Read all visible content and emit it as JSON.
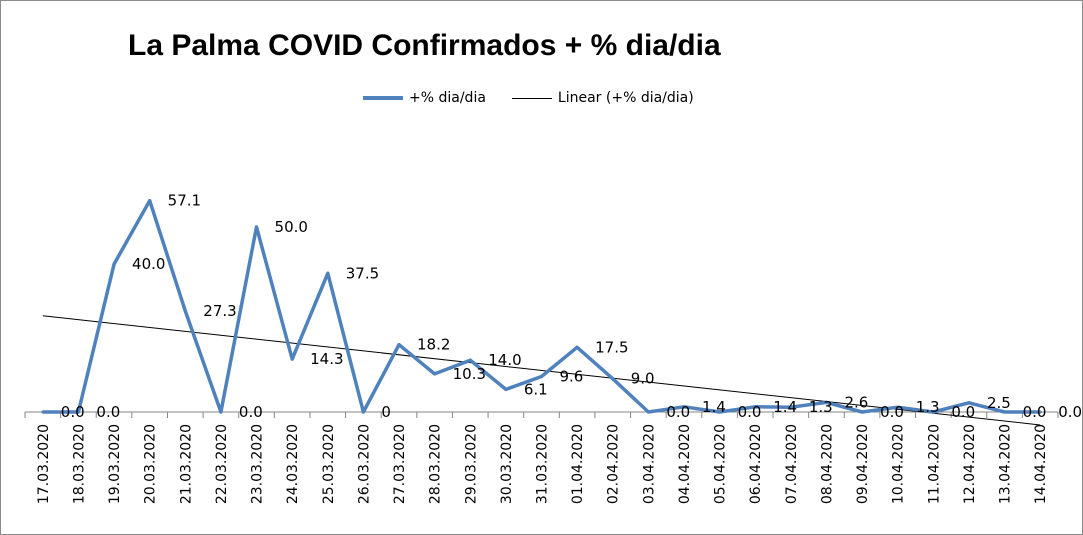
{
  "chart_data": {
    "type": "line",
    "title": "La Palma COVID Confirmados + % dia/dia",
    "xlabel": "",
    "ylabel": "",
    "ylim": [
      0,
      60
    ],
    "grid": false,
    "legend_position": "top",
    "categories": [
      "17.03.2020",
      "18.03.2020",
      "19.03.2020",
      "20.03.2020",
      "21.03.2020",
      "22.03.2020",
      "23.03.2020",
      "24.03.2020",
      "25.03.2020",
      "26.03.2020",
      "27.03.2020",
      "28.03.2020",
      "29.03.2020",
      "30.03.2020",
      "31.03.2020",
      "01.04.2020",
      "02.04.2020",
      "03.04.2020",
      "04.04.2020",
      "05.04.2020",
      "06.04.2020",
      "07.04.2020",
      "08.04.2020",
      "09.04.2020",
      "10.04.2020",
      "11.04.2020",
      "12.04.2020",
      "13.04.2020",
      "14.04.2020"
    ],
    "series": [
      {
        "name": "+% dia/dia",
        "color": "#4f81bd",
        "values": [
          0,
          0,
          40,
          57.1,
          27.3,
          0,
          50,
          14.3,
          37.5,
          0,
          18.2,
          10.3,
          14.0,
          6.1,
          9.6,
          17.5,
          9.0,
          0,
          1.4,
          0,
          1.4,
          1.3,
          2.6,
          0,
          1.3,
          0,
          2.5,
          0,
          0
        ],
        "labels": [
          "0.0",
          "0.0",
          "40.0",
          "57.1",
          "27.3",
          "0.0",
          "50.0",
          "14.3",
          "37.5",
          "0",
          "18.2",
          "10.3",
          "14.0",
          "6.1",
          "9.6",
          "17.5",
          "9.0",
          "0.0",
          "1.4",
          "0.0",
          "1.4",
          "1.3",
          "2.6",
          "0.0",
          "1.3",
          "0.0",
          "2.5",
          "0.0",
          "0.0"
        ]
      },
      {
        "name": "Linear (+% dia/dia)",
        "color": "#000000",
        "type": "trendline",
        "start": 26.0,
        "end": -3.5
      }
    ]
  }
}
